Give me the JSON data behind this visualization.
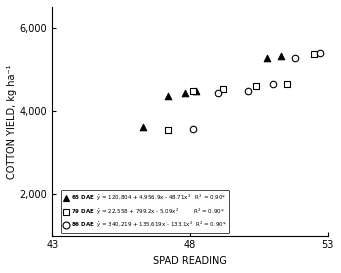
{
  "title": "",
  "xlabel": "SPAD READING",
  "ylabel": "COTTON YIELD, kg ha⁻¹",
  "xlim": [
    43,
    53
  ],
  "ylim": [
    1000,
    6500
  ],
  "yticks": [
    2000,
    4000,
    6000
  ],
  "xticks": [
    43,
    48,
    53
  ],
  "series": [
    {
      "label": "65 DAE",
      "marker": "^",
      "marker_fill": "black",
      "x": [
        46.3,
        47.2,
        47.8,
        48.2,
        50.8,
        51.3
      ],
      "y": [
        3620,
        4350,
        4420,
        4470,
        5280,
        5330
      ],
      "eq_a": 120804,
      "eq_b": 4956.9,
      "eq_c": -48.71,
      "x_range": [
        45.5,
        52.0
      ]
    },
    {
      "label": "79 DAE",
      "marker": "s",
      "marker_fill": "white",
      "x": [
        47.2,
        48.1,
        49.2,
        50.4,
        51.5,
        52.5
      ],
      "y": [
        3530,
        4470,
        4520,
        4600,
        4640,
        5360
      ],
      "eq_a": 22558,
      "eq_b": 799.2,
      "eq_c": -5.09,
      "x_range": [
        46.8,
        53.0
      ]
    },
    {
      "label": "86 DAE",
      "marker": "o",
      "marker_fill": "white",
      "x": [
        48.1,
        49.0,
        50.1,
        51.0,
        51.8,
        52.7
      ],
      "y": [
        3570,
        4420,
        4490,
        4640,
        5280,
        5390
      ],
      "eq_a": -340219,
      "eq_b": 135619,
      "eq_c": -133.1,
      "x_range": [
        47.5,
        53.0
      ]
    }
  ],
  "legend_lines": [
    "65 DAE",
    "79 DAE",
    "86 DAE"
  ],
  "background": "#ffffff"
}
